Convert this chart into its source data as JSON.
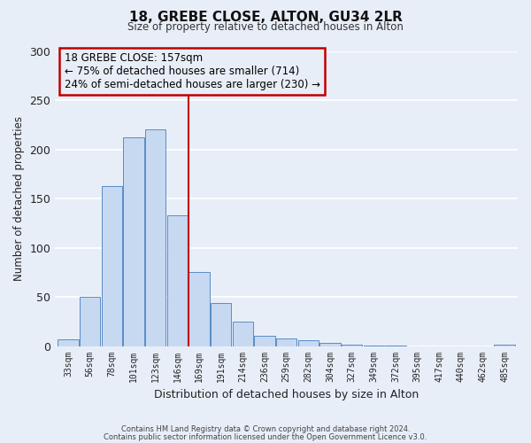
{
  "title": "18, GREBE CLOSE, ALTON, GU34 2LR",
  "subtitle": "Size of property relative to detached houses in Alton",
  "xlabel": "Distribution of detached houses by size in Alton",
  "ylabel": "Number of detached properties",
  "bar_labels": [
    "33sqm",
    "56sqm",
    "78sqm",
    "101sqm",
    "123sqm",
    "146sqm",
    "169sqm",
    "191sqm",
    "214sqm",
    "236sqm",
    "259sqm",
    "282sqm",
    "304sqm",
    "327sqm",
    "349sqm",
    "372sqm",
    "395sqm",
    "417sqm",
    "440sqm",
    "462sqm",
    "485sqm"
  ],
  "bar_values": [
    7,
    50,
    163,
    212,
    220,
    133,
    76,
    44,
    25,
    11,
    8,
    6,
    4,
    2,
    1,
    1,
    0,
    0,
    0,
    0,
    2
  ],
  "bar_color": "#c6d9f1",
  "bar_edge_color": "#5b8cc8",
  "vline_x": 5.5,
  "vline_color": "#c00000",
  "ylim": [
    0,
    300
  ],
  "yticks": [
    0,
    50,
    100,
    150,
    200,
    250,
    300
  ],
  "annotation_title": "18 GREBE CLOSE: 157sqm",
  "annotation_line1": "← 75% of detached houses are smaller (714)",
  "annotation_line2": "24% of semi-detached houses are larger (230) →",
  "annotation_box_color": "#c00000",
  "footer1": "Contains HM Land Registry data © Crown copyright and database right 2024.",
  "footer2": "Contains public sector information licensed under the Open Government Licence v3.0.",
  "background_color": "#e8eef8",
  "grid_color": "#ffffff"
}
